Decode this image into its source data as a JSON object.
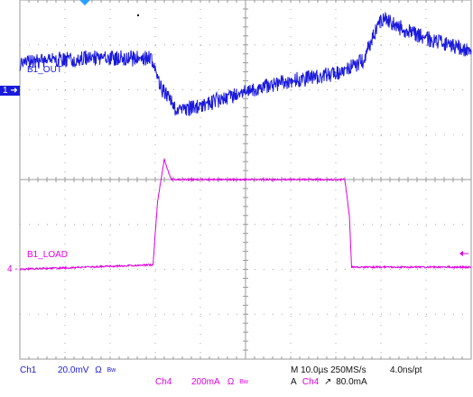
{
  "channels": {
    "ch1": {
      "trace_label": "B1_OUT",
      "marker": "1",
      "color": "#1a1adc",
      "status_name": "Ch1",
      "scale": "20.0mV",
      "ohm_symbol": "Ω",
      "bw_symbol": "Bw"
    },
    "ch4": {
      "trace_label": "B1_LOAD",
      "marker": "4",
      "color": "#e000e0",
      "status_name": "Ch4",
      "scale": "200mA",
      "ohm_symbol": "Ω",
      "bw_symbol": "Bw"
    }
  },
  "timebase": {
    "line1": "M 10.0µs 250MS/s",
    "resolution": "4.0ns/pt"
  },
  "trigger": {
    "mode": "A",
    "source": "Ch4",
    "slope_symbol": "↗",
    "level": "80.0mA"
  },
  "chart_data": {
    "type": "line",
    "divisions_x": 10,
    "divisions_y": 8,
    "x_unit_per_div": "10.0µs",
    "series": [
      {
        "name": "B1_OUT",
        "channel": "Ch1",
        "color": "#1a1adc",
        "y_unit_per_div": "20.0mV",
        "ground_div": 2.6,
        "noise_div": 0.18,
        "x_div": [
          0,
          0.6,
          1.4,
          2.9,
          3.1,
          3.5,
          4.0,
          5.0,
          6.0,
          7.0,
          7.6,
          8.0,
          8.4,
          9.0,
          10.0
        ],
        "y_div": [
          0,
          0.05,
          0.1,
          0.1,
          -0.5,
          -1.1,
          -0.95,
          -0.65,
          -0.4,
          -0.25,
          0.05,
          1.0,
          0.8,
          0.55,
          0.25
        ]
      },
      {
        "name": "B1_LOAD",
        "channel": "Ch4",
        "color": "#e000e0",
        "y_unit_per_div": "200mA",
        "ground_div": -2.0,
        "noise_div": 0.02,
        "x_div": [
          0,
          2.95,
          3.05,
          3.2,
          3.35,
          7.2,
          7.3,
          7.35,
          10.0
        ],
        "y_div": [
          0,
          0.1,
          1.5,
          2.45,
          2.0,
          2.0,
          1.2,
          0.05,
          0.05
        ]
      }
    ],
    "markers": {
      "trigger_pos_div": 3.0,
      "trigger_level_div": -0.8
    }
  }
}
